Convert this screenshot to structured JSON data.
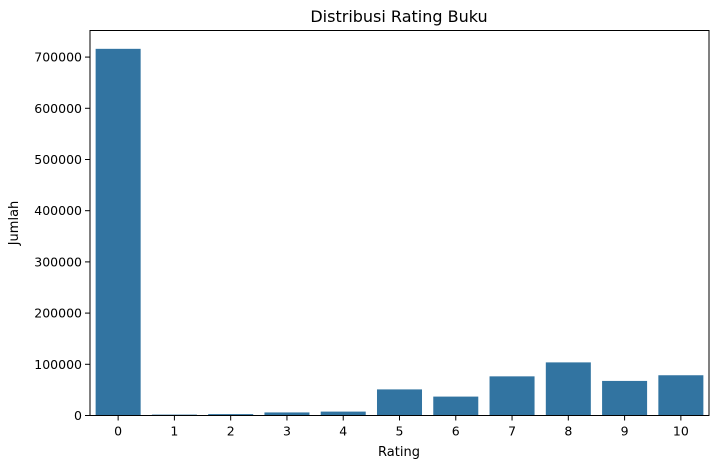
{
  "chart_data": {
    "type": "bar",
    "title": "Distribusi Rating Buku",
    "xlabel": "Rating",
    "ylabel": "Jumlah",
    "categories": [
      "0",
      "1",
      "2",
      "3",
      "4",
      "5",
      "6",
      "7",
      "8",
      "9",
      "10"
    ],
    "values": [
      716109,
      1770,
      2759,
      5996,
      7617,
      50974,
      36924,
      76457,
      103736,
      67541,
      78610
    ],
    "ylim": [
      0,
      751915
    ],
    "yticks": [
      0,
      100000,
      200000,
      300000,
      400000,
      500000,
      600000,
      700000
    ],
    "ytick_labels": [
      "0",
      "100000",
      "200000",
      "300000",
      "400000",
      "500000",
      "600000",
      "700000"
    ],
    "grid": false,
    "legend": "none",
    "bar_color": "#3274a1"
  }
}
